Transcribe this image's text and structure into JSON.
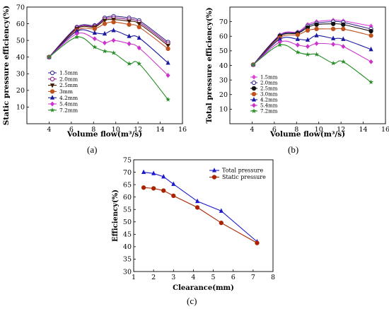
{
  "panel_labels": {
    "a": "(a)",
    "b": "(b)",
    "c": "(c)"
  },
  "chart_data": [
    {
      "id": "a",
      "type": "line",
      "xlabel": "Volume flow(m³/s)",
      "ylabel": "Static pressure efficiency(%)",
      "xlim": [
        2,
        16
      ],
      "ylim": [
        0,
        70
      ],
      "xticks": [
        4,
        6,
        8,
        10,
        12,
        14,
        16
      ],
      "yticks": [
        10,
        20,
        30,
        40,
        50,
        60,
        70
      ],
      "legend_position": "left-center",
      "series": [
        {
          "name": "1.5mm",
          "color": "#3a2a8c",
          "marker": "circle-open",
          "x": [
            4.0,
            6.5,
            8.1,
            9.0,
            9.8,
            11.2,
            12.1,
            14.7
          ],
          "y": [
            40,
            58,
            59,
            63.5,
            64.5,
            63.5,
            62,
            49
          ]
        },
        {
          "name": "2.0mm",
          "color": "#8b1a8b",
          "marker": "circle-open",
          "x": [
            4.0,
            6.5,
            8.1,
            9.0,
            9.8,
            11.2,
            12.1,
            14.7
          ],
          "y": [
            40,
            57.5,
            58.5,
            62.8,
            63.5,
            62.5,
            61,
            48
          ]
        },
        {
          "name": "2.5mm",
          "color": "#3d1a00",
          "marker": "triangle-down",
          "x": [
            4.0,
            6.5,
            8.1,
            9.0,
            9.8,
            11.2,
            12.1,
            14.7
          ],
          "y": [
            40,
            57,
            58,
            62,
            62.5,
            61.5,
            60,
            47
          ]
        },
        {
          "name": "3mm",
          "color": "#c0521e",
          "marker": "circle",
          "x": [
            4.0,
            6.5,
            8.1,
            9.0,
            9.8,
            11.2,
            12.1,
            14.7
          ],
          "y": [
            40,
            56,
            57,
            60,
            61,
            59.5,
            58,
            45
          ]
        },
        {
          "name": "4.2mm",
          "color": "#1a1aa0",
          "marker": "triangle",
          "x": [
            4.0,
            6.5,
            8.1,
            9.0,
            9.8,
            11.2,
            12.1,
            14.7
          ],
          "y": [
            40,
            55.5,
            54.5,
            54,
            56,
            52.5,
            51.5,
            36.5
          ]
        },
        {
          "name": "5.4mm",
          "color": "#cc33cc",
          "marker": "diamond",
          "x": [
            4.0,
            6.5,
            8.1,
            9.0,
            9.8,
            11.2,
            12.1,
            14.7
          ],
          "y": [
            40,
            54,
            51,
            48.5,
            50,
            48,
            45.5,
            29
          ]
        },
        {
          "name": "7.2mm",
          "color": "#228b22",
          "marker": "star",
          "x": [
            4.0,
            6.5,
            8.1,
            9.0,
            9.8,
            11.2,
            12.1,
            14.7
          ],
          "y": [
            40,
            52,
            46,
            43.5,
            42.5,
            36,
            36,
            14.5
          ]
        }
      ]
    },
    {
      "id": "b",
      "type": "line",
      "xlabel": "Volume flow(m³/s)",
      "ylabel": "Total pressure efficiency(%)",
      "xlim": [
        2,
        16
      ],
      "ylim": [
        0,
        80
      ],
      "xticks": [
        4,
        6,
        8,
        10,
        12,
        14,
        16
      ],
      "yticks": [
        10,
        20,
        30,
        40,
        50,
        60,
        70
      ],
      "legend_position": "bottom-left",
      "series": [
        {
          "name": "1.5mm",
          "color": "#dd44dd",
          "marker": "diamond",
          "x": [
            4.1,
            6.5,
            8.1,
            9.0,
            9.8,
            11.3,
            12.2,
            14.7
          ],
          "y": [
            40.5,
            61,
            63,
            68,
            70,
            71,
            70.5,
            67
          ]
        },
        {
          "name": "2.0mm",
          "color": "#3a2a8c",
          "marker": "circle-open",
          "x": [
            4.1,
            6.5,
            8.1,
            9.0,
            9.8,
            11.3,
            12.2,
            14.7
          ],
          "y": [
            40.5,
            60.5,
            62.5,
            67,
            69,
            70,
            69.5,
            65
          ]
        },
        {
          "name": "2.5mm",
          "color": "#111111",
          "marker": "circle",
          "x": [
            4.1,
            6.5,
            8.1,
            9.0,
            9.8,
            11.3,
            12.2,
            14.7
          ],
          "y": [
            40.5,
            60,
            62,
            66,
            68,
            68.5,
            68,
            63.5
          ]
        },
        {
          "name": "3.0mm",
          "color": "#c0521e",
          "marker": "circle",
          "x": [
            4.1,
            6.5,
            8.1,
            9.0,
            9.8,
            11.3,
            12.2,
            14.7
          ],
          "y": [
            40.5,
            59,
            61,
            64,
            65,
            65,
            65,
            60.5
          ]
        },
        {
          "name": "4.2mm",
          "color": "#1a1aa0",
          "marker": "triangle",
          "x": [
            4.1,
            6.5,
            8.1,
            9.0,
            9.8,
            11.3,
            12.2,
            14.7
          ],
          "y": [
            40.5,
            58,
            58,
            57.5,
            60.5,
            58.5,
            58,
            51
          ]
        },
        {
          "name": "5.4mm",
          "color": "#cc33cc",
          "marker": "diamond",
          "x": [
            4.1,
            6.5,
            8.1,
            9.0,
            9.8,
            11.3,
            12.2,
            14.7
          ],
          "y": [
            40.5,
            56,
            54,
            53,
            55,
            54.5,
            53,
            42.5
          ]
        },
        {
          "name": "7.2mm",
          "color": "#228b22",
          "marker": "star",
          "x": [
            4.1,
            6.5,
            8.1,
            9.0,
            9.8,
            11.3,
            12.2,
            14.7
          ],
          "y": [
            40.5,
            54,
            49,
            47.5,
            47.5,
            41.5,
            42.5,
            28.5
          ]
        }
      ]
    },
    {
      "id": "c",
      "type": "line",
      "xlabel": "Clearance(mm)",
      "ylabel": "Efficiency(%)",
      "xlim": [
        1,
        8
      ],
      "ylim": [
        30,
        75
      ],
      "xticks": [
        1,
        2,
        3,
        4,
        5,
        6,
        7,
        8
      ],
      "yticks": [
        30,
        35,
        40,
        45,
        50,
        55,
        60,
        65,
        70,
        75
      ],
      "legend_position": "top-right",
      "series": [
        {
          "name": "Total pressure",
          "color": "#1a1acc",
          "marker": "triangle",
          "x": [
            1.5,
            2.0,
            2.5,
            3.0,
            4.2,
            5.4,
            7.2
          ],
          "y": [
            70,
            69.5,
            68.2,
            65.2,
            58.3,
            54.4,
            42
          ]
        },
        {
          "name": "Static pressure",
          "color": "#aa2200",
          "marker": "circle",
          "x": [
            1.5,
            2.0,
            2.5,
            3.0,
            4.2,
            5.4,
            7.2
          ],
          "y": [
            63.8,
            63.5,
            62.6,
            60.5,
            55.8,
            49.6,
            41.5
          ]
        }
      ]
    }
  ]
}
